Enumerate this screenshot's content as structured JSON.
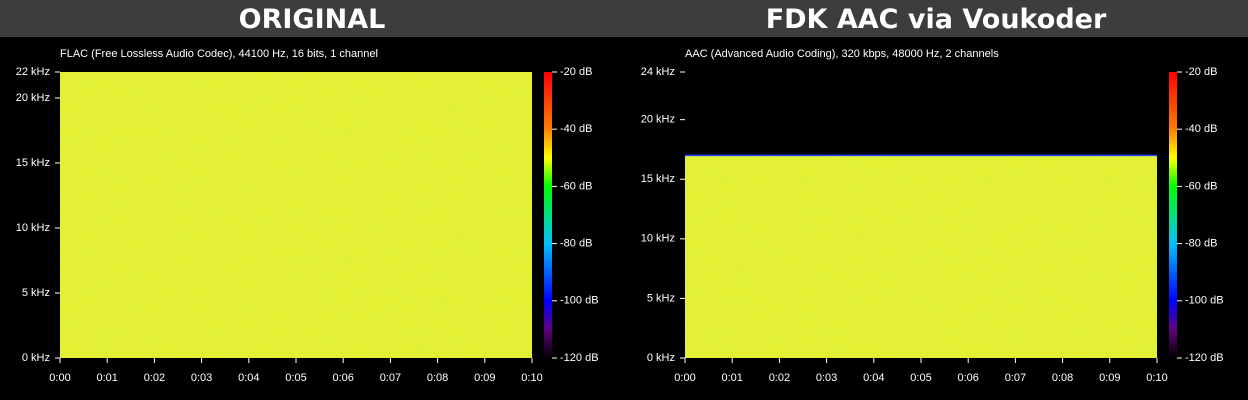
{
  "headers": [
    "ORIGINAL",
    "FDK AAC via Voukoder"
  ],
  "chart_data": [
    {
      "type": "spectrogram",
      "title": "FLAC (Free Lossless Audio Codec), 44100 Hz, 16 bits, 1 channel",
      "xlim": [
        0,
        10
      ],
      "xticks": [
        {
          "value": 0,
          "label": "0:00"
        },
        {
          "value": 1,
          "label": "0:01"
        },
        {
          "value": 2,
          "label": "0:02"
        },
        {
          "value": 3,
          "label": "0:03"
        },
        {
          "value": 4,
          "label": "0:04"
        },
        {
          "value": 5,
          "label": "0:05"
        },
        {
          "value": 6,
          "label": "0:06"
        },
        {
          "value": 7,
          "label": "0:07"
        },
        {
          "value": 8,
          "label": "0:08"
        },
        {
          "value": 9,
          "label": "0:09"
        },
        {
          "value": 10,
          "label": "0:10"
        }
      ],
      "ylim": [
        0,
        22
      ],
      "yticks": [
        {
          "value": 0,
          "label": "0 kHz"
        },
        {
          "value": 5,
          "label": "5 kHz"
        },
        {
          "value": 10,
          "label": "10 kHz"
        },
        {
          "value": 15,
          "label": "15 kHz"
        },
        {
          "value": 20,
          "label": "20 kHz"
        },
        {
          "value": 22,
          "label": "22 kHz"
        }
      ],
      "colorbar_lim": [
        -120,
        -20
      ],
      "colorbar_ticks": [
        {
          "value": -20,
          "label": "-20 dB"
        },
        {
          "value": -40,
          "label": "-40 dB"
        },
        {
          "value": -60,
          "label": "-60 dB"
        },
        {
          "value": -80,
          "label": "-80 dB"
        },
        {
          "value": -100,
          "label": "-100 dB"
        },
        {
          "value": -120,
          "label": "-120 dB"
        }
      ],
      "bands": [
        {
          "from": 0,
          "to": 22,
          "level": -50
        }
      ]
    },
    {
      "type": "spectrogram",
      "title": "AAC (Advanced Audio Coding), 320 kbps, 48000 Hz, 2 channels",
      "xlim": [
        0,
        10
      ],
      "xticks": [
        {
          "value": 0,
          "label": "0:00"
        },
        {
          "value": 1,
          "label": "0:01"
        },
        {
          "value": 2,
          "label": "0:02"
        },
        {
          "value": 3,
          "label": "0:03"
        },
        {
          "value": 4,
          "label": "0:04"
        },
        {
          "value": 5,
          "label": "0:05"
        },
        {
          "value": 6,
          "label": "0:06"
        },
        {
          "value": 7,
          "label": "0:07"
        },
        {
          "value": 8,
          "label": "0:08"
        },
        {
          "value": 9,
          "label": "0:09"
        },
        {
          "value": 10,
          "label": "0:10"
        }
      ],
      "ylim": [
        0,
        24
      ],
      "yticks": [
        {
          "value": 0,
          "label": "0 kHz"
        },
        {
          "value": 5,
          "label": "5 kHz"
        },
        {
          "value": 10,
          "label": "10 kHz"
        },
        {
          "value": 15,
          "label": "15 kHz"
        },
        {
          "value": 20,
          "label": "20 kHz"
        },
        {
          "value": 24,
          "label": "24 kHz"
        }
      ],
      "colorbar_lim": [
        -120,
        -20
      ],
      "colorbar_ticks": [
        {
          "value": -20,
          "label": "-20 dB"
        },
        {
          "value": -40,
          "label": "-40 dB"
        },
        {
          "value": -60,
          "label": "-60 dB"
        },
        {
          "value": -80,
          "label": "-80 dB"
        },
        {
          "value": -100,
          "label": "-100 dB"
        },
        {
          "value": -120,
          "label": "-120 dB"
        }
      ],
      "bands": [
        {
          "from": 0,
          "to": 17,
          "level": -50
        }
      ]
    }
  ]
}
